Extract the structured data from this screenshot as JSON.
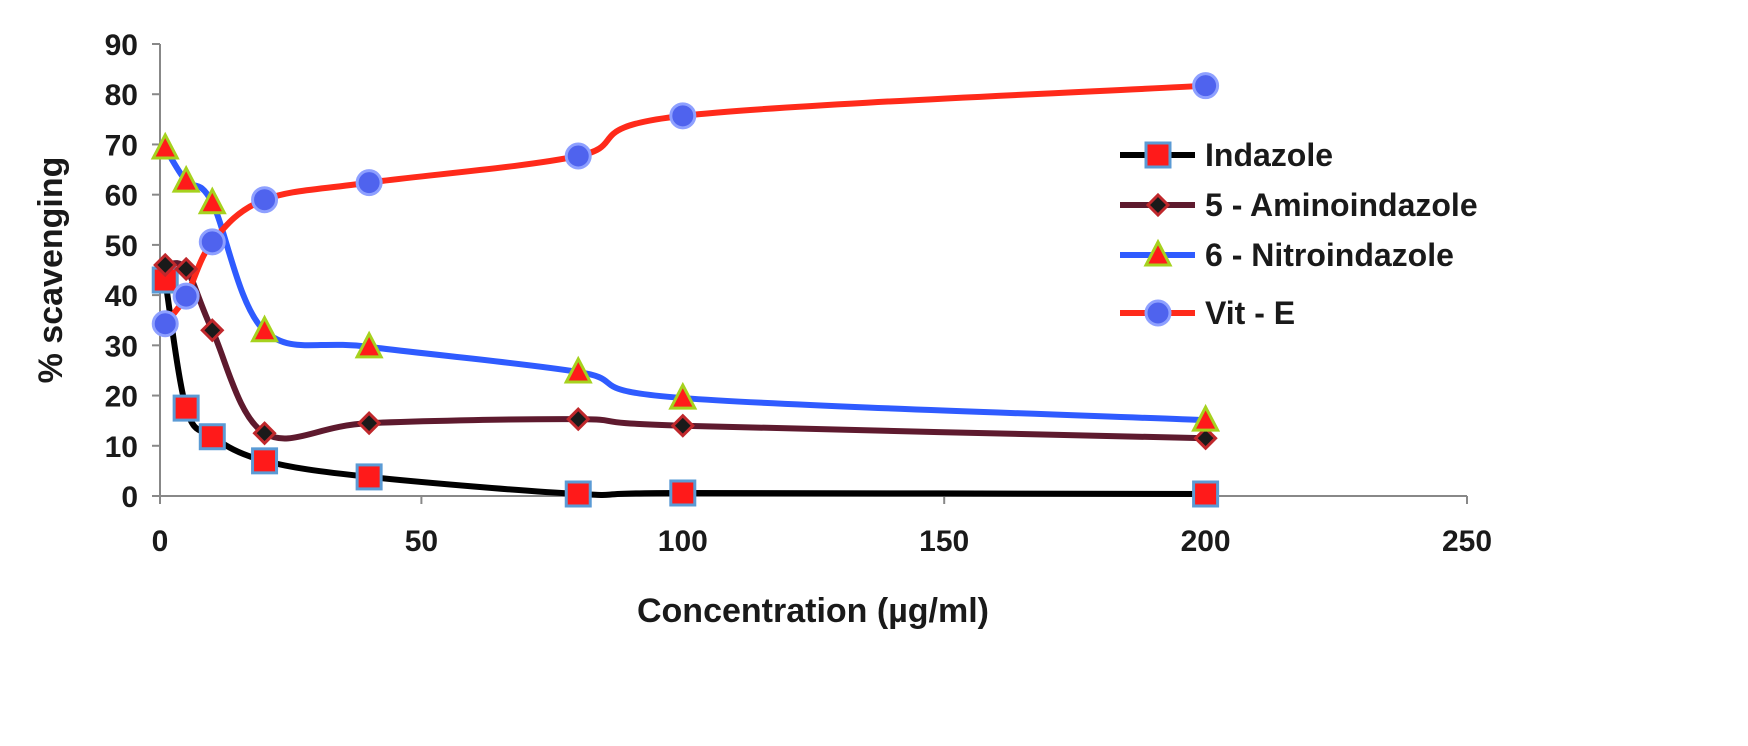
{
  "chart_data": {
    "type": "line",
    "title": "",
    "xlabel": "Concentration (µg/ml)",
    "ylabel": "% scavenging",
    "xlim": [
      0,
      250
    ],
    "ylim": [
      0,
      90
    ],
    "xticks": [
      0,
      50,
      100,
      150,
      200,
      250
    ],
    "yticks": [
      0,
      10,
      20,
      30,
      40,
      50,
      60,
      70,
      80,
      90
    ],
    "grid": false,
    "legend_position": "right",
    "x": [
      1,
      5,
      10,
      20,
      40,
      80,
      100,
      200
    ],
    "series": [
      {
        "name": "Indazole",
        "marker": "square",
        "line_color": "#000000",
        "marker_fill": "#ff1a1a",
        "marker_stroke": "#5b9bd5",
        "values": [
          43,
          17.5,
          11.8,
          7,
          3.8,
          0.4,
          0.6,
          0.4
        ]
      },
      {
        "name": "5 - Aminoindazole",
        "marker": "diamond",
        "line_color": "#5e1a2e",
        "marker_fill": "#1a1a1a",
        "marker_stroke": "#c0282c",
        "values": [
          46,
          45.2,
          33,
          12.5,
          14.5,
          15.3,
          14,
          11.5
        ]
      },
      {
        "name": "6 - Nitroindazole",
        "marker": "triangle",
        "line_color": "#2f5bff",
        "marker_fill": "#ff1a1a",
        "marker_stroke": "#a6d21e",
        "values": [
          69.3,
          62.7,
          58.4,
          32.9,
          29.7,
          24.7,
          19.5,
          15.1
        ]
      },
      {
        "name": "Vit - E",
        "marker": "circle",
        "line_color": "#ff2a1a",
        "marker_fill": "#4f63ee",
        "marker_stroke": "#8ea0ff",
        "values": [
          34.3,
          39.8,
          50.6,
          59,
          62.4,
          67.7,
          75.7,
          81.7
        ]
      }
    ]
  }
}
